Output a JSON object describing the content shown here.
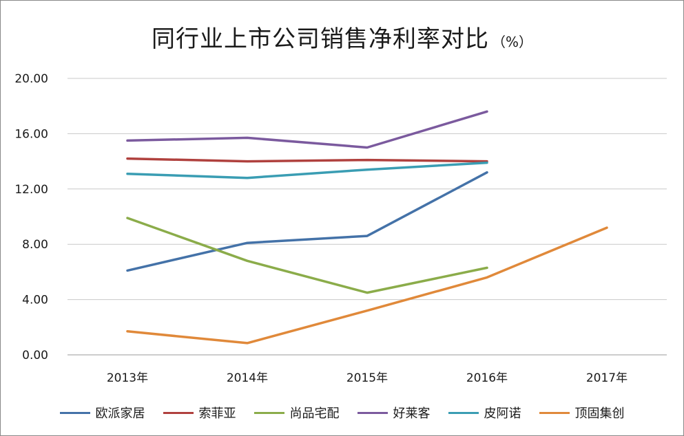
{
  "chart_data": {
    "type": "line",
    "title": "同行业上市公司销售净利率对比",
    "title_unit": "（%）",
    "xlabel": "",
    "ylabel": "",
    "categories": [
      "2013年",
      "2014年",
      "2015年",
      "2016年",
      "2017年"
    ],
    "y_ticks": [
      "0.00",
      "4.00",
      "8.00",
      "12.00",
      "16.00",
      "20.00"
    ],
    "ylim": [
      0,
      20
    ],
    "grid": true,
    "legend_position": "bottom",
    "series": [
      {
        "name": "欧派家居",
        "color": "#4472a8",
        "values": [
          6.1,
          8.1,
          8.6,
          13.2,
          null
        ]
      },
      {
        "name": "索菲亚",
        "color": "#b0413e",
        "values": [
          14.2,
          14.0,
          14.1,
          14.0,
          null
        ]
      },
      {
        "name": "尚品宅配",
        "color": "#8bac4a",
        "values": [
          9.9,
          6.8,
          4.5,
          6.3,
          null
        ]
      },
      {
        "name": "好莱客",
        "color": "#7b5a9e",
        "values": [
          15.5,
          15.7,
          15.0,
          17.6,
          null
        ]
      },
      {
        "name": "皮阿诺",
        "color": "#3a9db3",
        "values": [
          13.1,
          12.8,
          13.4,
          13.9,
          null
        ]
      },
      {
        "name": "顶固集创",
        "color": "#e0893a",
        "values": [
          1.7,
          0.85,
          3.2,
          5.6,
          9.2
        ]
      }
    ]
  }
}
